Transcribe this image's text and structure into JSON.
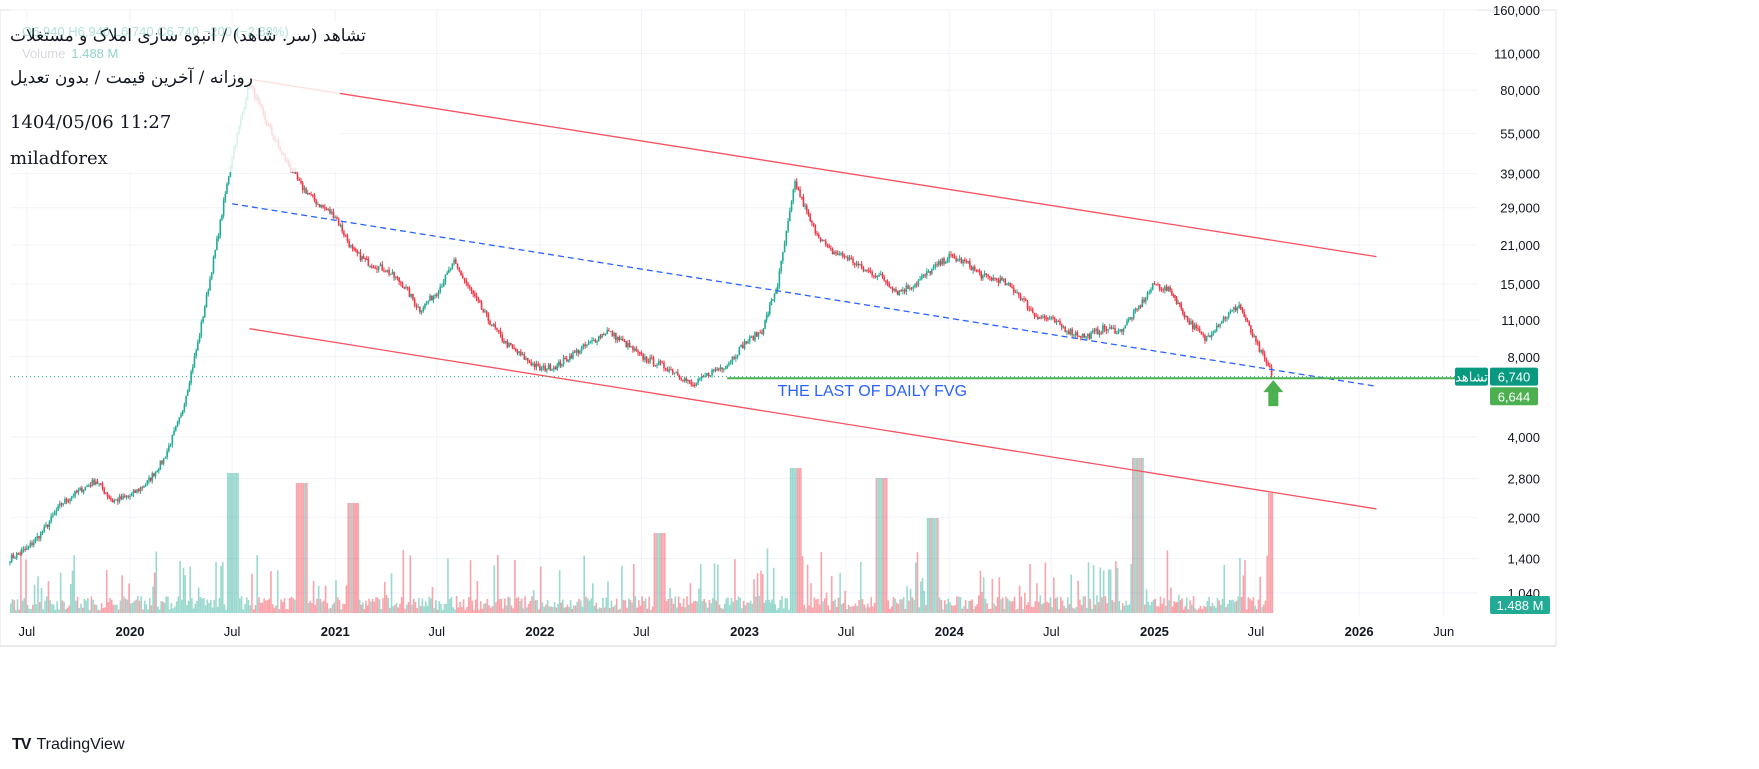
{
  "header": {
    "ohlc_text": "O6,940  H6,940  L6,740  C6,740  −200 (−2.88%)",
    "volume_label": "Volume",
    "volume_value": "1.488 M",
    "title": "تشاهد (سر. شاهد) / انبوه سازی املاک و مستغلات",
    "subtitle": "روزانه / آخرین قیمت / بدون تعدیل",
    "timestamp": "1404/05/06 11:27",
    "author": "miladforex"
  },
  "brand": {
    "name": "TradingView",
    "logo": "TV"
  },
  "colors": {
    "up": "#22ab94",
    "down": "#f23645",
    "channel": "#f7525f",
    "midline": "#2962ff",
    "fvg": "#4caf50",
    "annotation": "#2962ff",
    "grid": "#f0f3fa"
  },
  "chart_data": {
    "type": "candlestick",
    "x_axis": {
      "ticks": [
        "Jul",
        "2020",
        "Jul",
        "2021",
        "Jul",
        "2022",
        "Jul",
        "2023",
        "Jul",
        "2024",
        "Jul",
        "2025",
        "Jul",
        "2026",
        "Jun"
      ],
      "tick_dates": [
        "2019-07",
        "2020-01",
        "2020-07",
        "2021-01",
        "2021-07",
        "2022-01",
        "2022-07",
        "2023-01",
        "2023-07",
        "2024-01",
        "2024-07",
        "2025-01",
        "2025-07",
        "2026-01",
        "2026-06"
      ],
      "range": [
        "2019-06",
        "2026-08"
      ]
    },
    "y_axis": {
      "scale": "log",
      "ticks": [
        "160,000",
        "110,000",
        "80,000",
        "55,000",
        "39,000",
        "29,000",
        "21,000",
        "15,000",
        "11,000",
        "8,000",
        "4,000",
        "2,800",
        "2,000",
        "1,400",
        "1,040"
      ],
      "tick_values": [
        160000,
        110000,
        80000,
        55000,
        39000,
        29000,
        21000,
        15000,
        11000,
        8000,
        4000,
        2800,
        2000,
        1400,
        1040
      ],
      "range": [
        1000,
        165000
      ]
    },
    "price_path": [
      [
        "2019-06",
        1400
      ],
      [
        "2019-07",
        1520
      ],
      [
        "2019-08",
        1800
      ],
      [
        "2019-09",
        2250
      ],
      [
        "2019-10",
        2500
      ],
      [
        "2019-11",
        2750
      ],
      [
        "2019-12",
        2300
      ],
      [
        "2020-01",
        2400
      ],
      [
        "2020-02",
        2700
      ],
      [
        "2020-03",
        3300
      ],
      [
        "2020-04",
        4800
      ],
      [
        "2020-05",
        9000
      ],
      [
        "2020-06",
        20000
      ],
      [
        "2020-07",
        45000
      ],
      [
        "2020-08",
        85000
      ],
      [
        "2020-09",
        60000
      ],
      [
        "2020-10",
        45000
      ],
      [
        "2020-11",
        35000
      ],
      [
        "2020-12",
        30000
      ],
      [
        "2021-01",
        27000
      ],
      [
        "2021-02",
        20000
      ],
      [
        "2021-03",
        18000
      ],
      [
        "2021-04",
        17000
      ],
      [
        "2021-05",
        15000
      ],
      [
        "2021-06",
        12000
      ],
      [
        "2021-07",
        14000
      ],
      [
        "2021-08",
        18000
      ],
      [
        "2021-09",
        14000
      ],
      [
        "2021-10",
        11000
      ],
      [
        "2021-11",
        9000
      ],
      [
        "2021-12",
        8000
      ],
      [
        "2022-01",
        7200
      ],
      [
        "2022-02",
        7400
      ],
      [
        "2022-03",
        8200
      ],
      [
        "2022-04",
        9000
      ],
      [
        "2022-05",
        10000
      ],
      [
        "2022-06",
        9000
      ],
      [
        "2022-07",
        8000
      ],
      [
        "2022-08",
        7500
      ],
      [
        "2022-09",
        7000
      ],
      [
        "2022-10",
        6200
      ],
      [
        "2022-11",
        7000
      ],
      [
        "2022-12",
        7500
      ],
      [
        "2023-01",
        9000
      ],
      [
        "2023-02",
        10000
      ],
      [
        "2023-03",
        15000
      ],
      [
        "2023-04",
        36000
      ],
      [
        "2023-05",
        25000
      ],
      [
        "2023-06",
        20000
      ],
      [
        "2023-07",
        19000
      ],
      [
        "2023-08",
        17000
      ],
      [
        "2023-09",
        16000
      ],
      [
        "2023-10",
        14000
      ],
      [
        "2023-11",
        15000
      ],
      [
        "2023-12",
        17000
      ],
      [
        "2024-01",
        19000
      ],
      [
        "2024-02",
        18000
      ],
      [
        "2024-03",
        16000
      ],
      [
        "2024-04",
        15500
      ],
      [
        "2024-05",
        14000
      ],
      [
        "2024-06",
        11500
      ],
      [
        "2024-07",
        11000
      ],
      [
        "2024-08",
        10000
      ],
      [
        "2024-09",
        9500
      ],
      [
        "2024-10",
        10200
      ],
      [
        "2024-11",
        10000
      ],
      [
        "2024-12",
        12000
      ],
      [
        "2025-01",
        15000
      ],
      [
        "2025-02",
        14000
      ],
      [
        "2025-03",
        11000
      ],
      [
        "2025-04",
        9300
      ],
      [
        "2025-05",
        11000
      ],
      [
        "2025-06",
        12500
      ],
      [
        "2025-07",
        9000
      ],
      [
        "2025-08",
        6740
      ]
    ],
    "last_price": {
      "value": 6740,
      "label": "6,740",
      "symbol": "تشاهد"
    },
    "fvg_level": {
      "value": 6644,
      "label": "6,644",
      "start": "2022-12",
      "end": "2026-08"
    },
    "annotation": {
      "text": "THE LAST OF DAILY FVG",
      "date": "2023-03",
      "value": 5900
    },
    "arrow": {
      "direction": "up",
      "date": "2025-08",
      "value": 5600
    },
    "upper_channel": [
      [
        "2020-08",
        88000
      ],
      [
        "2026-02",
        19000
      ]
    ],
    "lower_channel": [
      [
        "2020-08",
        10200
      ],
      [
        "2026-02",
        2150
      ]
    ],
    "mid_line": [
      [
        "2020-07",
        30000
      ],
      [
        "2026-02",
        6200
      ]
    ],
    "volume": {
      "last_label": "1.488 M",
      "peaks": [
        [
          "2020-07",
          2.8
        ],
        [
          "2020-11",
          2.6
        ],
        [
          "2021-02",
          2.2
        ],
        [
          "2022-08",
          1.6
        ],
        [
          "2023-04",
          2.9
        ],
        [
          "2023-09",
          2.7
        ],
        [
          "2023-12",
          1.9
        ],
        [
          "2024-12",
          3.1
        ],
        [
          "2025-08",
          2.4
        ]
      ]
    },
    "legend": "none",
    "grid": true
  }
}
